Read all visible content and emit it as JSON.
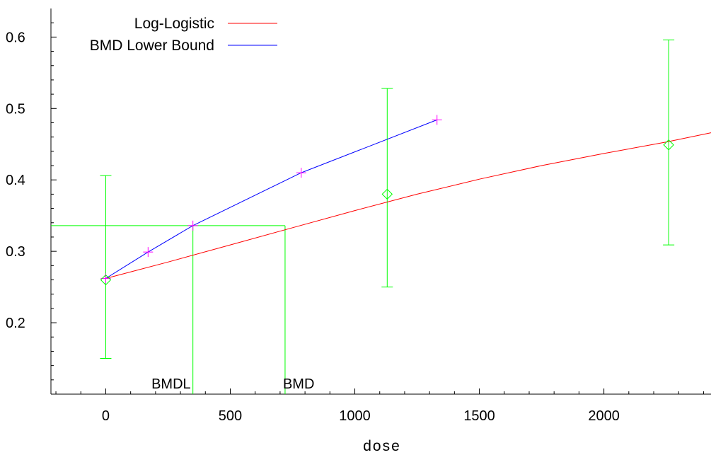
{
  "chart_data": {
    "type": "line",
    "title": "",
    "xlabel": "dose",
    "ylabel": "",
    "xlim": [
      -220,
      2430
    ],
    "ylim": [
      0.1,
      0.64
    ],
    "x_ticks": [
      0,
      500,
      1000,
      1500,
      2000
    ],
    "y_ticks": [
      0.2,
      0.3,
      0.4,
      0.5,
      0.6
    ],
    "legend_position": "top-left",
    "grid": false,
    "series": [
      {
        "name": "Log-Logistic",
        "color": "#ff0000",
        "x": [
          0,
          250,
          500,
          750,
          1000,
          1250,
          1500,
          1750,
          2000,
          2250,
          2430
        ],
        "y": [
          0.262,
          0.285,
          0.309,
          0.333,
          0.357,
          0.38,
          0.401,
          0.42,
          0.437,
          0.453,
          0.466
        ]
      },
      {
        "name": "BMD Lower Bound",
        "color": "#0000ff",
        "x": [
          0,
          170,
          350,
          785,
          1330
        ],
        "y": [
          0.262,
          0.299,
          0.336,
          0.41,
          0.484
        ]
      }
    ],
    "markers": {
      "color": "#ff00ff",
      "x": [
        0,
        170,
        350,
        785,
        1330
      ],
      "y": [
        0.262,
        0.299,
        0.336,
        0.41,
        0.484
      ]
    },
    "observed": {
      "color": "#00ff00",
      "points": [
        {
          "x": 0,
          "y": 0.26,
          "lower": 0.15,
          "upper": 0.406
        },
        {
          "x": 1130,
          "y": 0.38,
          "lower": 0.25,
          "upper": 0.528
        },
        {
          "x": 2260,
          "y": 0.449,
          "lower": 0.309,
          "upper": 0.596
        }
      ]
    },
    "bmd_lines": {
      "color": "#00ff00",
      "bmr_level": 0.336,
      "bmdl": 350,
      "bmd": 720
    },
    "annotations": [
      {
        "text": "BMDL",
        "x": 350
      },
      {
        "text": "BMD",
        "x": 720
      }
    ]
  }
}
